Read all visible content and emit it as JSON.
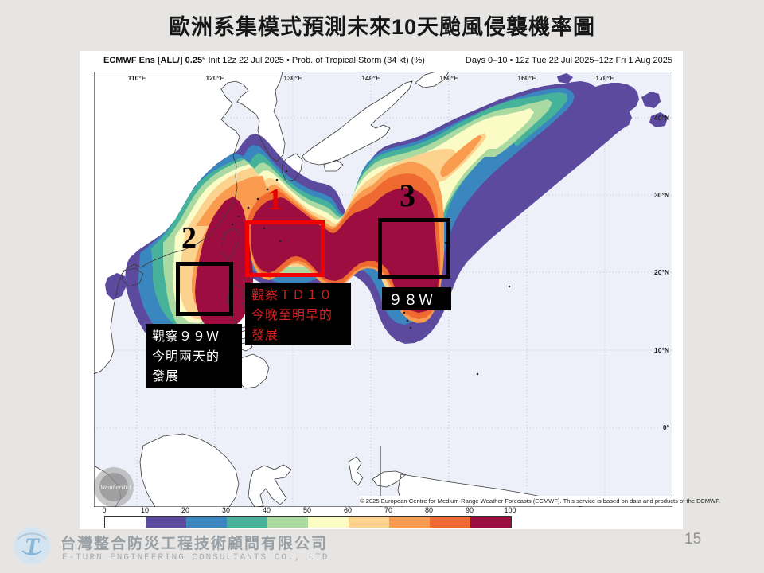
{
  "slide": {
    "title": "歐洲系集模式預測未來10天颱風侵襲機率圖",
    "page_number": "15"
  },
  "map": {
    "header_left_bold": "ECMWF Ens [ALL/] 0.25°",
    "header_left_rest": " Init 12z 22 Jul 2025 • Prob. of Tropical Storm (34 kt) (%)",
    "header_right": "Days 0–10 • 12z Tue 22 Jul 2025–12z Fri 1 Aug 2025",
    "copyright": "© 2025 European Centre for Medium-Range Weather Forecasts (ECMWF). This service is based on data and products of the ECMWF.",
    "watermark": "WeatherBELL",
    "lon_labels": [
      "110°E",
      "120°E",
      "130°E",
      "140°E",
      "150°E",
      "160°E",
      "170°E"
    ],
    "lat_labels": [
      "40°N",
      "30°N",
      "20°N",
      "10°N",
      "0°"
    ],
    "ocean_color": "#edf0f8",
    "land_color": "#ffffff",
    "coast_color": "#3a3a3a",
    "grid_color": "#b9bfd4"
  },
  "annotations": [
    {
      "number": "1",
      "box_color": "#f00000",
      "num_color": "#e80000",
      "text_color": "#d41f1f",
      "text": "觀察ＴＤ１０\n今晚至明早的\n發展"
    },
    {
      "number": "2",
      "box_color": "#000000",
      "num_color": "#000000",
      "text_color": "#ffffff",
      "text": "觀察９９Ｗ\n今明兩天的\n發展"
    },
    {
      "number": "3",
      "box_color": "#000000",
      "num_color": "#000000",
      "text_color": "#ffffff",
      "text": "９８Ｗ"
    }
  ],
  "footer": {
    "company_zh": "台灣整合防災工程技術顧問有限公司",
    "company_en": "E-TURN ENGINEERING CONSULTANTS CO., LTD",
    "logo_letter": "T"
  },
  "chart_data": {
    "type": "heatmap",
    "variable": "Prob. of Tropical Storm (34 kt) (%)",
    "model": "ECMWF Ens [ALL/] 0.25°",
    "init": "12z 22 Jul 2025",
    "valid_range": "Days 0–10 • 12z Tue 22 Jul 2025–12z Fri 1 Aug 2025",
    "legend_ticks": [
      0,
      10,
      20,
      30,
      40,
      50,
      60,
      70,
      80,
      90,
      100
    ],
    "legend_colors": [
      "#ffffff",
      "#5b4a9e",
      "#3a86bf",
      "#47b29a",
      "#aadaa2",
      "#fbfbc6",
      "#fcd28f",
      "#f99c4f",
      "#ee6a31",
      "#9e0d40"
    ],
    "contour_levels_pct": [
      10,
      20,
      30,
      40,
      50,
      60,
      70,
      80,
      90
    ],
    "lon_range": [
      105,
      177
    ],
    "lat_range": [
      -10,
      46
    ],
    "grid_lons": [
      110,
      120,
      130,
      140,
      150,
      160,
      170
    ],
    "grid_lats": [
      40,
      30,
      20,
      10,
      0
    ],
    "hotspots": [
      {
        "label": "1",
        "system": "TD10",
        "note": "觀察ＴＤ１０今晚至明早的發展",
        "approx_center": "22N 128E",
        "prob_band": "90-100%"
      },
      {
        "label": "2",
        "system": "99W",
        "note": "觀察９９Ｗ今明兩天的發展",
        "approx_center": "20N 117E",
        "prob_band": "90-100%"
      },
      {
        "label": "3",
        "system": "98W",
        "note": "９８Ｗ",
        "approx_center": "22N 145E",
        "prob_band": "90-100%"
      }
    ]
  }
}
